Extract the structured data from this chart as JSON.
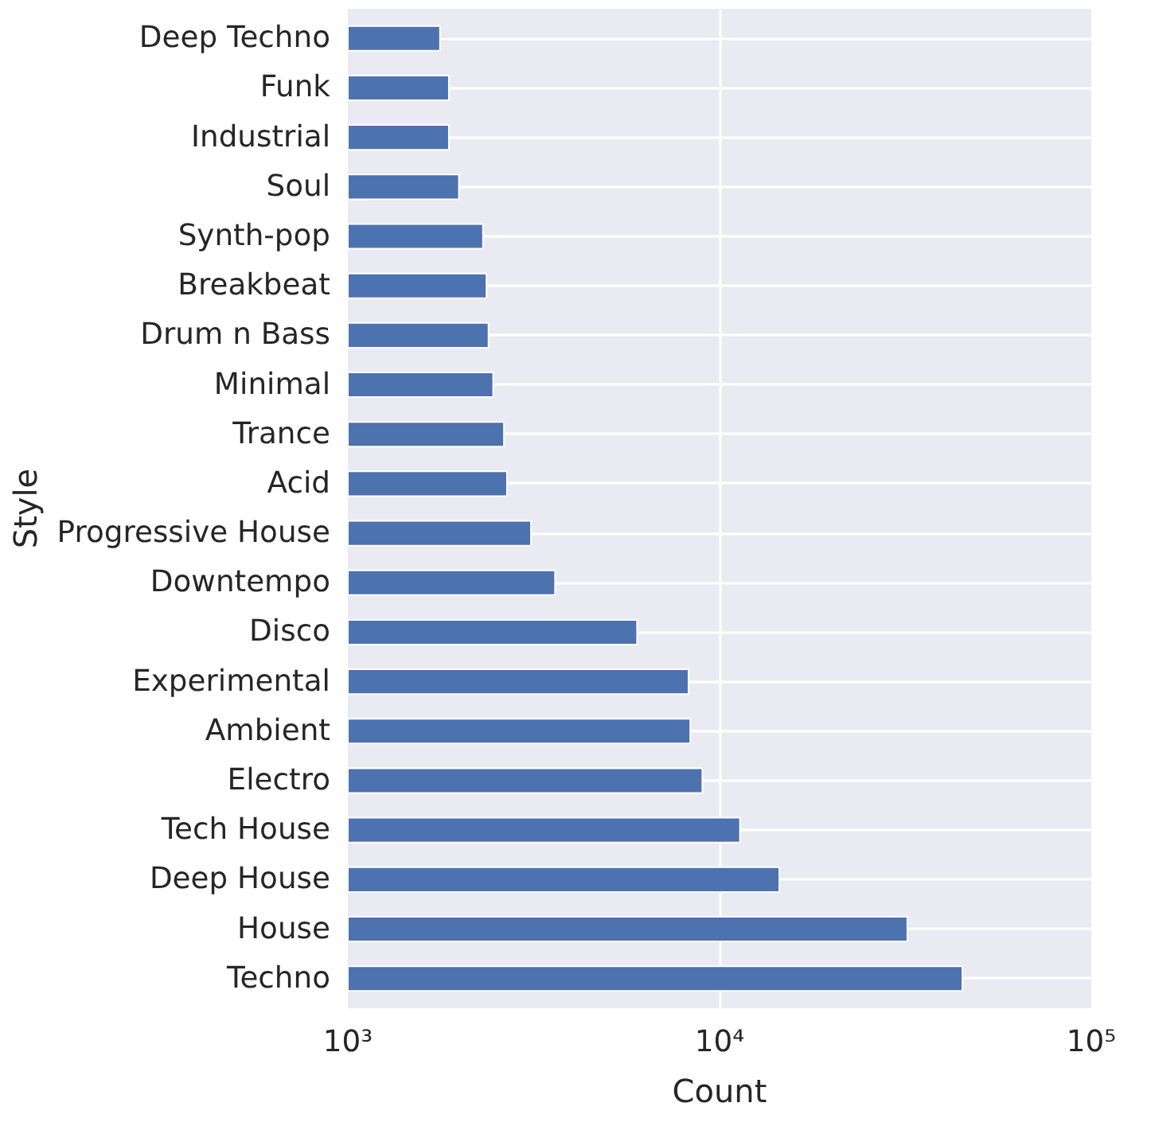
{
  "chart_data": {
    "type": "bar",
    "orientation": "horizontal",
    "log": "x",
    "xlabel": "Count",
    "ylabel": "Style",
    "categories": [
      "Deep Techno",
      "Funk",
      "Industrial",
      "Soul",
      "Synth-pop",
      "Breakbeat",
      "Drum n Bass",
      "Minimal",
      "Trance",
      "Acid",
      "Progressive House",
      "Downtempo",
      "Disco",
      "Experimental",
      "Ambient",
      "Electro",
      "Tech House",
      "Deep House",
      "House",
      "Techno"
    ],
    "values": [
      1770,
      1870,
      1870,
      1990,
      2310,
      2360,
      2390,
      2460,
      2630,
      2680,
      3110,
      3610,
      6000,
      8250,
      8340,
      8990,
      11350,
      14480,
      32000,
      45000
    ],
    "color": "#4c72b0",
    "xlim": [
      1000,
      100000
    ],
    "xticks": [
      {
        "value": 1000,
        "label": "10³"
      },
      {
        "value": 10000,
        "label": "10⁴"
      },
      {
        "value": 100000,
        "label": "10⁵"
      }
    ],
    "grid": true
  }
}
